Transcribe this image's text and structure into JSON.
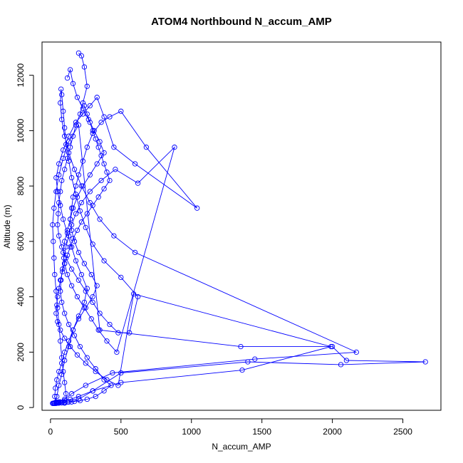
{
  "chart_data": {
    "type": "line",
    "title": "ATOM4 Northbound N_accum_AMP",
    "xlabel": "N_accum_AMP",
    "ylabel": "Altitude (m)",
    "xlim": [
      -60,
      2770
    ],
    "ylim": [
      -100,
      13200
    ],
    "xticks": [
      0,
      500,
      1000,
      1500,
      2000,
      2500
    ],
    "yticks": [
      0,
      2000,
      4000,
      6000,
      8000,
      10000,
      12000
    ],
    "grid": false,
    "markers": "open-circle",
    "line_color": "#0000ff",
    "series": [
      {
        "x": [
          30,
          45,
          60,
          80,
          100,
          130,
          160,
          200,
          240,
          260,
          220,
          180,
          150,
          120,
          90,
          70,
          50,
          40,
          60,
          90,
          130,
          180,
          230,
          280,
          330,
          380,
          450,
          600,
          1040,
          680,
          500,
          420,
          360,
          300,
          260,
          230,
          200,
          180,
          160,
          150,
          140,
          150,
          170,
          200,
          240,
          290,
          330,
          300,
          250,
          200,
          160,
          130,
          100,
          80,
          60,
          45,
          35,
          30,
          40,
          60,
          80,
          100,
          120,
          110,
          100,
          90,
          80,
          70,
          60,
          50,
          40,
          30,
          25,
          20,
          15,
          25,
          40,
          60,
          90,
          130,
          200,
          350,
          1350,
          2000,
          2100,
          2660,
          2060,
          1400,
          500,
          300,
          200,
          150,
          100,
          80,
          60,
          40,
          30,
          20,
          15
        ],
        "y": [
          150,
          400,
          800,
          1200,
          1700,
          2200,
          2800,
          3300,
          3800,
          4300,
          4800,
          5300,
          5800,
          6300,
          6800,
          7300,
          7800,
          8300,
          8800,
          9300,
          9800,
          10300,
          10600,
          10900,
          11200,
          10500,
          9400,
          8800,
          7200,
          9400,
          10700,
          10500,
          10300,
          9900,
          9400,
          8900,
          8400,
          8000,
          7600,
          7200,
          6800,
          6400,
          6000,
          5600,
          5200,
          4800,
          4400,
          4000,
          3600,
          3200,
          2800,
          2400,
          2000,
          1600,
          1300,
          1000,
          700,
          400,
          200,
          180,
          170,
          160,
          200,
          500,
          900,
          1300,
          1800,
          2400,
          3000,
          3600,
          4200,
          4800,
          5400,
          6000,
          6600,
          7200,
          7800,
          8400,
          9000,
          9600,
          10200,
          2800,
          2200,
          2200,
          1700,
          1650,
          1550,
          1650,
          1250,
          600,
          300,
          200,
          180,
          170,
          160,
          150,
          150,
          150,
          150
        ]
      },
      {
        "x": [
          200,
          220,
          240,
          260,
          230,
          210,
          180,
          160,
          140,
          120,
          100,
          80,
          70,
          60,
          55,
          50,
          60,
          80,
          110,
          150,
          200,
          250,
          300,
          350,
          420,
          480,
          560,
          620,
          500,
          380,
          300,
          250,
          210,
          180,
          150,
          130,
          110,
          100,
          90,
          80,
          75,
          70,
          80,
          100,
          130,
          170,
          220,
          280,
          350,
          450,
          600,
          2170,
          1450,
          440,
          250,
          150,
          100,
          60,
          40,
          30,
          25
        ],
        "y": [
          12800,
          12700,
          12300,
          11600,
          11000,
          10600,
          10200,
          9800,
          9400,
          9000,
          8600,
          8200,
          7800,
          7400,
          7000,
          6600,
          6200,
          5800,
          5400,
          5000,
          4600,
          4200,
          3800,
          3400,
          3000,
          2700,
          2700,
          4000,
          4700,
          5300,
          5900,
          6500,
          7100,
          7700,
          8300,
          8900,
          9500,
          10100,
          10700,
          11300,
          11500,
          11000,
          10400,
          9800,
          9200,
          8600,
          8000,
          7400,
          6800,
          6200,
          5600,
          2000,
          1750,
          1250,
          800,
          500,
          300,
          200,
          180,
          170,
          160
        ]
      },
      {
        "x": [
          120,
          140,
          160,
          190,
          230,
          270,
          310,
          350,
          380,
          330,
          280,
          230,
          190,
          160,
          140,
          120,
          100,
          90,
          100,
          120,
          150,
          190,
          240,
          290,
          340,
          400,
          470,
          880,
          620,
          460,
          360,
          280,
          220,
          180,
          150,
          130,
          110,
          95,
          85,
          75,
          70,
          80,
          100,
          130,
          170,
          210,
          260,
          320,
          380,
          430,
          380,
          320,
          260,
          210,
          170,
          130,
          100,
          80,
          60,
          50
        ],
        "y": [
          11900,
          12200,
          11700,
          11200,
          10800,
          10400,
          10000,
          9600,
          9200,
          8800,
          8400,
          8000,
          7600,
          7200,
          6800,
          6400,
          6000,
          5600,
          5200,
          4800,
          4400,
          4000,
          3600,
          3200,
          2800,
          2400,
          2000,
          9400,
          8100,
          8600,
          8200,
          7800,
          7400,
          7000,
          6600,
          6200,
          5800,
          5400,
          5000,
          4600,
          4200,
          3800,
          3400,
          3000,
          2600,
          2200,
          1800,
          1400,
          1000,
          800,
          600,
          400,
          300,
          250,
          220,
          200,
          190,
          180,
          170,
          160
        ]
      },
      {
        "x": [
          240,
          260,
          280,
          300,
          320,
          340,
          360,
          380,
          400,
          420,
          380,
          340,
          300,
          260,
          220,
          190,
          160,
          140,
          120,
          100,
          85,
          70,
          60,
          50,
          45,
          40,
          50,
          70,
          100,
          140,
          190,
          250,
          320,
          400,
          480,
          590,
          1990,
          1360,
          500,
          300,
          200,
          140,
          100,
          70,
          50
        ],
        "y": [
          10900,
          10600,
          10300,
          10000,
          9700,
          9400,
          9100,
          8800,
          8500,
          8200,
          7900,
          7600,
          7300,
          7000,
          6700,
          6400,
          6100,
          5800,
          5500,
          5200,
          4900,
          4600,
          4300,
          4000,
          3700,
          3400,
          3100,
          2800,
          2500,
          2200,
          1900,
          1600,
          1300,
          1000,
          800,
          4100,
          2200,
          1350,
          900,
          600,
          400,
          300,
          250,
          200,
          180
        ]
      }
    ]
  }
}
